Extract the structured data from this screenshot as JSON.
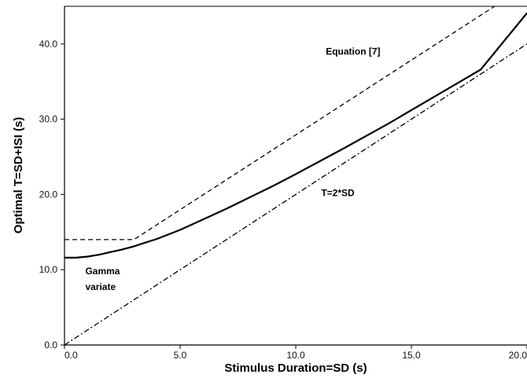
{
  "chart_data": {
    "type": "line",
    "title": "",
    "xlabel": "Stimulus Duration=SD (s)",
    "ylabel": "Optimal T=SD+ISI (s)",
    "xlim": [
      0,
      20
    ],
    "ylim": [
      0,
      45
    ],
    "x_ticks": [
      0,
      5,
      10,
      15,
      20
    ],
    "x_tick_labels": [
      "0.0",
      "5.0",
      "10.0",
      "15.0",
      "20.0"
    ],
    "y_ticks": [
      0,
      10,
      20,
      30,
      40
    ],
    "y_tick_labels": [
      "0.0",
      "10.0",
      "20.0",
      "30.0",
      "40.0"
    ],
    "grid": false,
    "legend": "none",
    "series": [
      {
        "id": "equation7",
        "style": "dashed",
        "x": [
          0,
          3,
          18.6
        ],
        "y": [
          14,
          14,
          45
        ]
      },
      {
        "id": "gamma",
        "style": "solid",
        "x": [
          0,
          0.5,
          1,
          1.5,
          2,
          2.5,
          3,
          3.5,
          4,
          5,
          6,
          7,
          8,
          9,
          10,
          12,
          14,
          16,
          18,
          20
        ],
        "y": [
          11.6,
          11.6,
          11.75,
          12.0,
          12.35,
          12.7,
          13.1,
          13.6,
          14.1,
          15.3,
          16.7,
          18.1,
          19.6,
          21.1,
          22.7,
          26.0,
          29.4,
          33.0,
          36.6,
          44.1
        ]
      },
      {
        "id": "t2sd",
        "style": "dashdot",
        "x": [
          0,
          20
        ],
        "y": [
          0,
          40
        ]
      }
    ],
    "annotations": [
      {
        "id": "eq7",
        "text": "Equation [7]",
        "x": 11.3,
        "y": 38.6
      },
      {
        "id": "t2sd",
        "text": "T=2*SD",
        "x": 11.1,
        "y": 19.8
      },
      {
        "id": "gamma1",
        "text": "Gamma",
        "x": 0.9,
        "y": 9.4
      },
      {
        "id": "gamma2",
        "text": "variate",
        "x": 0.9,
        "y": 7.3
      }
    ]
  }
}
